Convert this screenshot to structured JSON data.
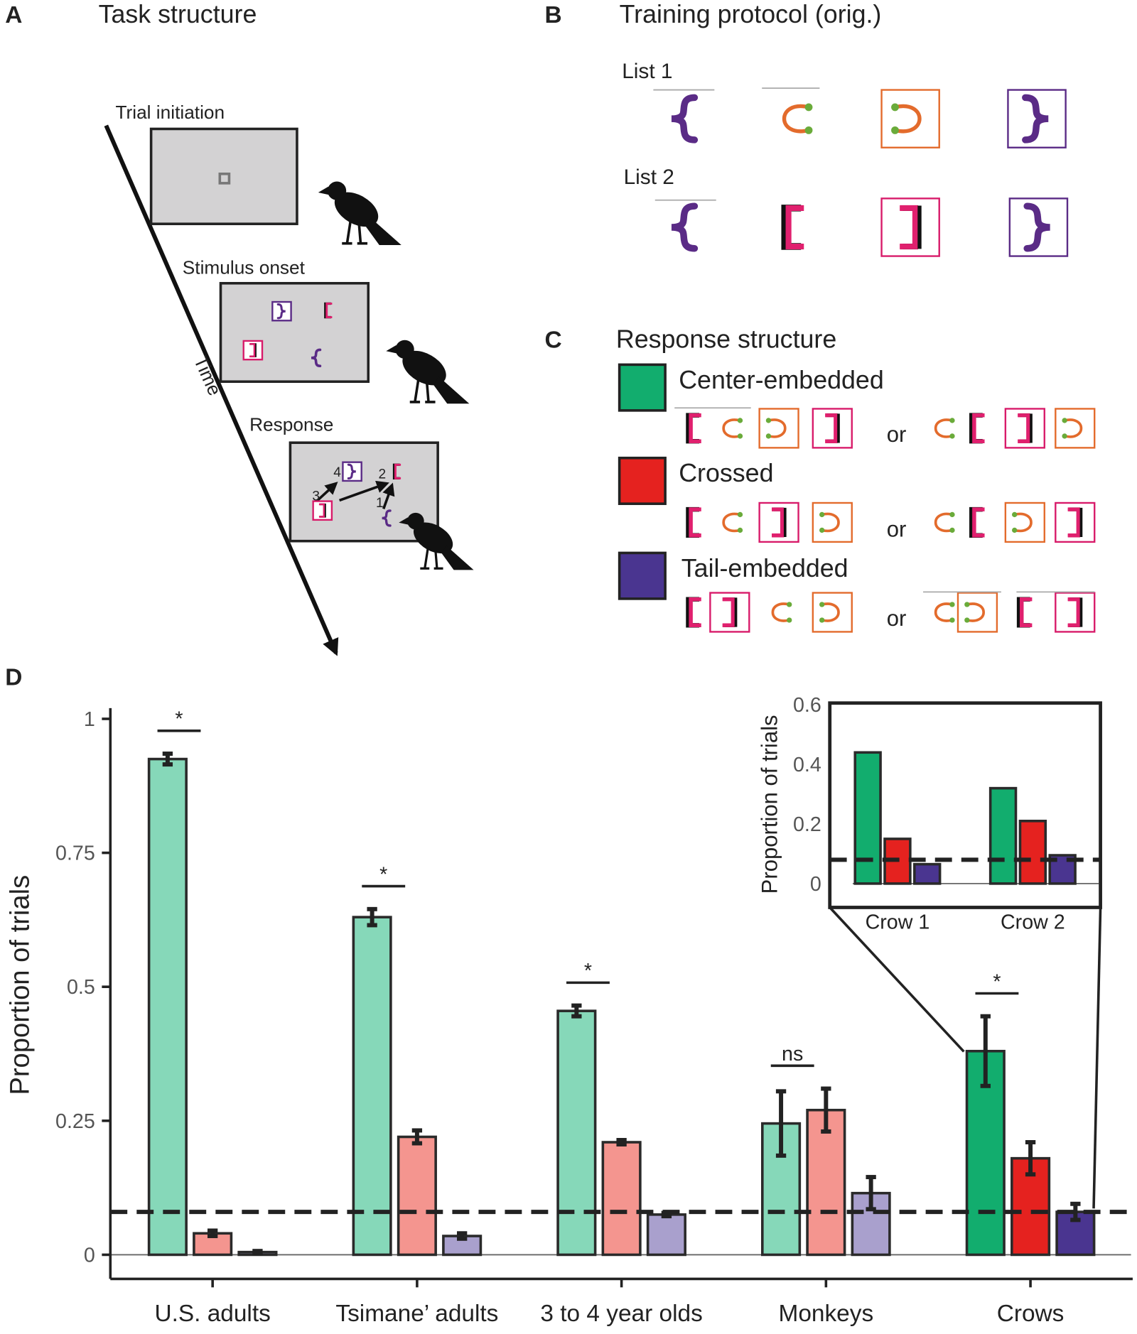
{
  "panels": {
    "A": {
      "letter": "A",
      "title": "Task structure",
      "steps": [
        "Trial initiation",
        "Stimulus onset",
        "Response"
      ],
      "axis_label": "Time",
      "order_labels": [
        "1",
        "2",
        "3",
        "4"
      ]
    },
    "B": {
      "letter": "B",
      "title": "Training protocol (orig.)",
      "lists": [
        "List 1",
        "List 2"
      ]
    },
    "C": {
      "letter": "C",
      "title": "Response structure",
      "or": "or"
    },
    "D": {
      "letter": "D"
    }
  },
  "chart_data": [
    {
      "type": "bar",
      "categories": [
        "U.S. adults",
        "Tsimane’ adults",
        "3 to 4 year olds",
        "Monkeys",
        "Crows"
      ],
      "ylabel": "Proportion of trials",
      "ylim": [
        -0.045,
        1.02
      ],
      "yticks": [
        0,
        0.25,
        0.5,
        0.75,
        1
      ],
      "reference_line": 0.08,
      "annotations": [
        "*",
        "*",
        "*",
        "ns",
        "*"
      ],
      "series": [
        {
          "name": "Center-embedded",
          "color": "#12ad6e",
          "bar_colors": [
            "#86d8b9",
            "#86d8b9",
            "#86d8b9",
            "#86d8b9",
            "#12ad6e"
          ],
          "values": [
            0.925,
            0.63,
            0.455,
            0.245,
            0.38
          ],
          "errors": [
            0.01,
            0.015,
            0.01,
            0.06,
            0.065
          ]
        },
        {
          "name": "Crossed",
          "color": "#e5221f",
          "bar_colors": [
            "#f4958f",
            "#f4958f",
            "#f4958f",
            "#f4958f",
            "#e5221f"
          ],
          "values": [
            0.04,
            0.22,
            0.21,
            0.27,
            0.18
          ],
          "errors": [
            0.005,
            0.012,
            0.004,
            0.04,
            0.03
          ]
        },
        {
          "name": "Tail-embedded",
          "color": "#4a3590",
          "bar_colors": [
            "#a9a0cd",
            "#a9a0cd",
            "#a9a0cd",
            "#a9a0cd",
            "#4a3590"
          ],
          "values": [
            0.005,
            0.035,
            0.075,
            0.115,
            0.08
          ],
          "errors": [
            0.002,
            0.005,
            0.003,
            0.03,
            0.015
          ]
        }
      ]
    },
    {
      "type": "bar",
      "categories": [
        "Crow 1",
        "Crow 2"
      ],
      "ylabel": "Proportion of trials",
      "ylim": [
        -0.08,
        0.6
      ],
      "yticks": [
        0,
        0.2,
        0.4,
        0.6
      ],
      "reference_line": 0.08,
      "series": [
        {
          "color": "#12ad6e",
          "values": [
            0.44,
            0.32
          ]
        },
        {
          "color": "#e5221f",
          "values": [
            0.15,
            0.21
          ]
        },
        {
          "color": "#4a3590",
          "values": [
            0.065,
            0.095
          ]
        }
      ]
    }
  ]
}
